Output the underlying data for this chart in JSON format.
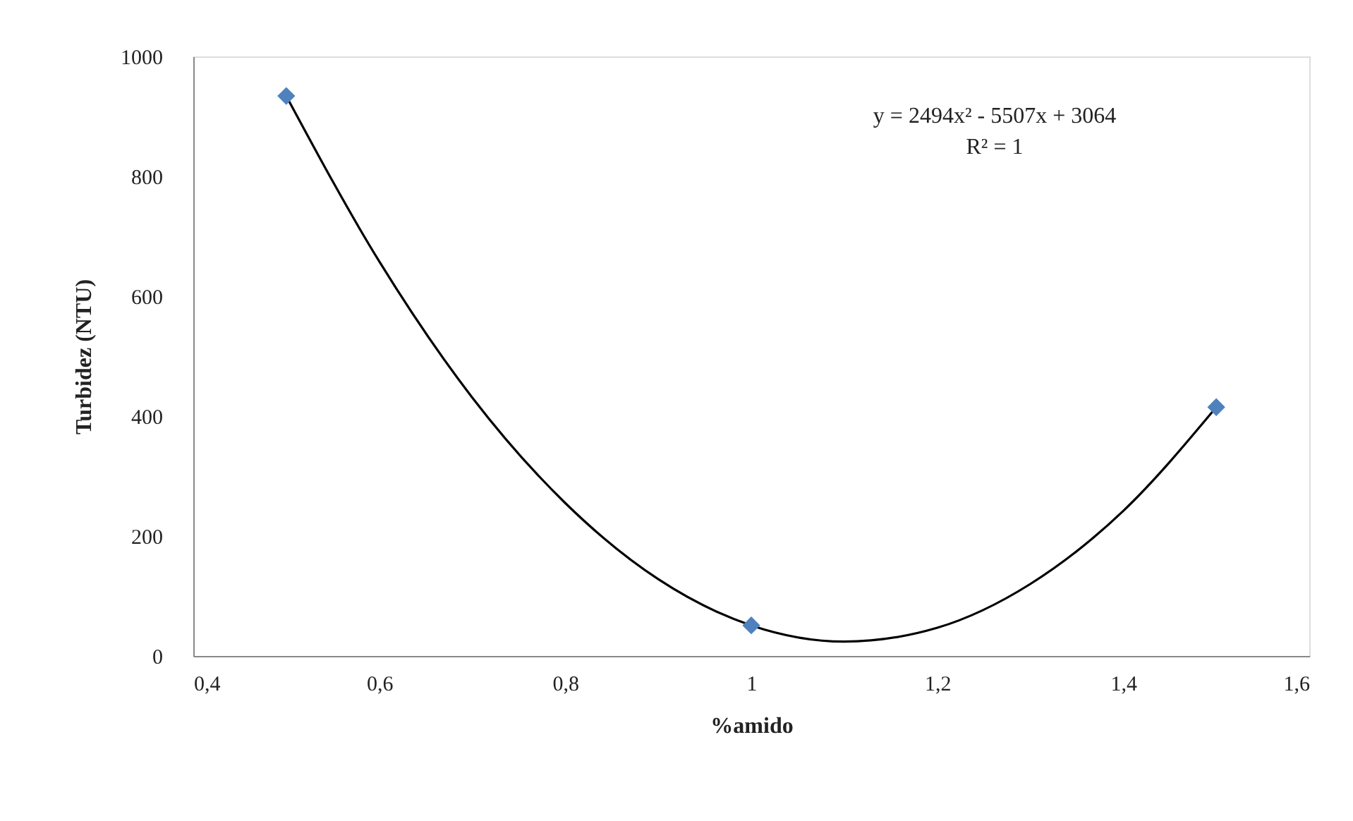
{
  "chart_data": {
    "type": "scatter",
    "xlabel": "%amido",
    "ylabel": "Turbidez (NTU)",
    "xlim": [
      0.4,
      1.6
    ],
    "xticks": [
      {
        "value": 0.4,
        "label": "0,4"
      },
      {
        "value": 0.6,
        "label": "0,6"
      },
      {
        "value": 0.8,
        "label": "0,8"
      },
      {
        "value": 1,
        "label": "1"
      },
      {
        "value": 1.2,
        "label": "1,2"
      },
      {
        "value": 1.4,
        "label": "1,4"
      },
      {
        "value": 1.6,
        "label": "1,6"
      }
    ],
    "ylim": [
      0,
      1000
    ],
    "yticks": [
      0,
      200,
      400,
      600,
      800,
      {
        "value": 1000,
        "label": "1000"
      }
    ],
    "grid": false,
    "legend": false,
    "series": [
      {
        "type": "line",
        "color": "#000000",
        "marker": "none",
        "line_style": "solid",
        "x": [
          0.5,
          0.6,
          0.7,
          0.8,
          0.9,
          1.0,
          1.1,
          1.2,
          1.3,
          1.4,
          1.5
        ],
        "values": [
          934,
          658,
          431,
          255,
          128,
          51,
          24,
          47,
          120,
          242,
          415
        ]
      },
      {
        "color": "#4f81bd",
        "marker": "diamond",
        "x": [
          0.5,
          1.0,
          1.5
        ],
        "values": [
          934,
          51,
          415
        ]
      }
    ],
    "annotations": [
      "y = 2494x² - 5507x + 3064",
      "R² = 1"
    ]
  }
}
